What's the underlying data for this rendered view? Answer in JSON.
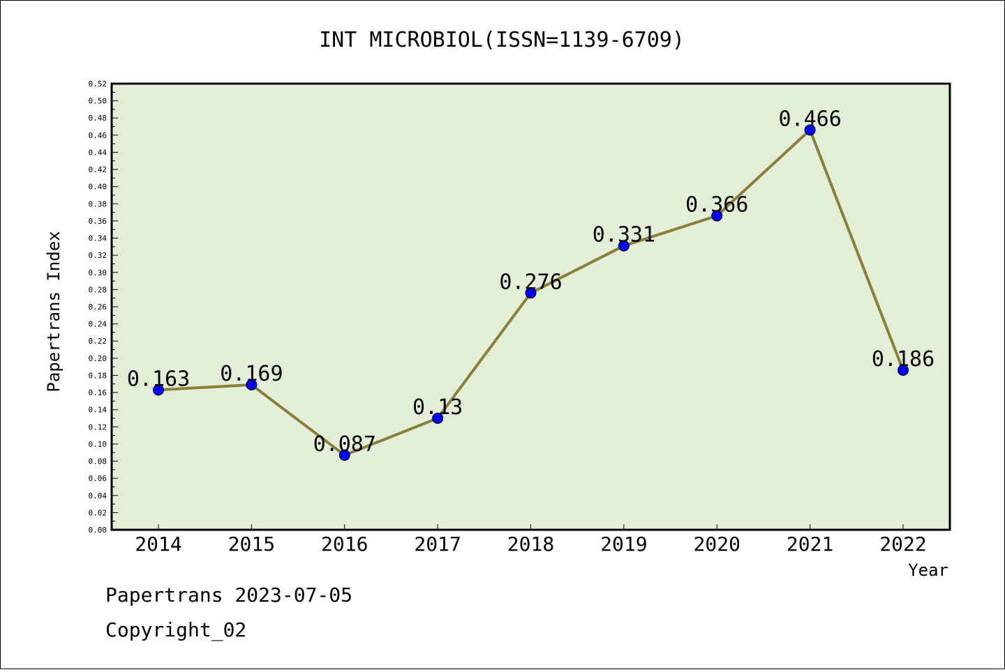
{
  "chart_data": {
    "type": "line",
    "title": "INT MICROBIOL(ISSN=1139-6709)",
    "xlabel": "Year",
    "ylabel": "Papertrans Index",
    "categories": [
      "2014",
      "2015",
      "2016",
      "2017",
      "2018",
      "2019",
      "2020",
      "2021",
      "2022"
    ],
    "values": [
      0.163,
      0.169,
      0.087,
      0.13,
      0.276,
      0.331,
      0.366,
      0.466,
      0.186
    ],
    "data_labels": [
      "0.163",
      "0.169",
      "0.087",
      "0.13",
      "0.276",
      "0.331",
      "0.366",
      "0.466",
      "0.186"
    ],
    "ylim": [
      0,
      0.52
    ],
    "y_ticks": [
      "0.00",
      "0.02",
      "0.04",
      "0.06",
      "0.08",
      "0.10",
      "0.12",
      "0.14",
      "0.16",
      "0.18",
      "0.20",
      "0.22",
      "0.24",
      "0.26",
      "0.28",
      "0.30",
      "0.32",
      "0.34",
      "0.36",
      "0.38",
      "0.40",
      "0.42",
      "0.44",
      "0.46",
      "0.48",
      "0.50",
      "0.52"
    ],
    "grid": false,
    "legend": "none",
    "colors": {
      "plot_background": "#e2efd6",
      "line": "#8b7d3a",
      "marker": "#0000ff"
    }
  },
  "footer": {
    "date_line": "Papertrans 2023-07-05",
    "copyright": "Copyright_02"
  }
}
